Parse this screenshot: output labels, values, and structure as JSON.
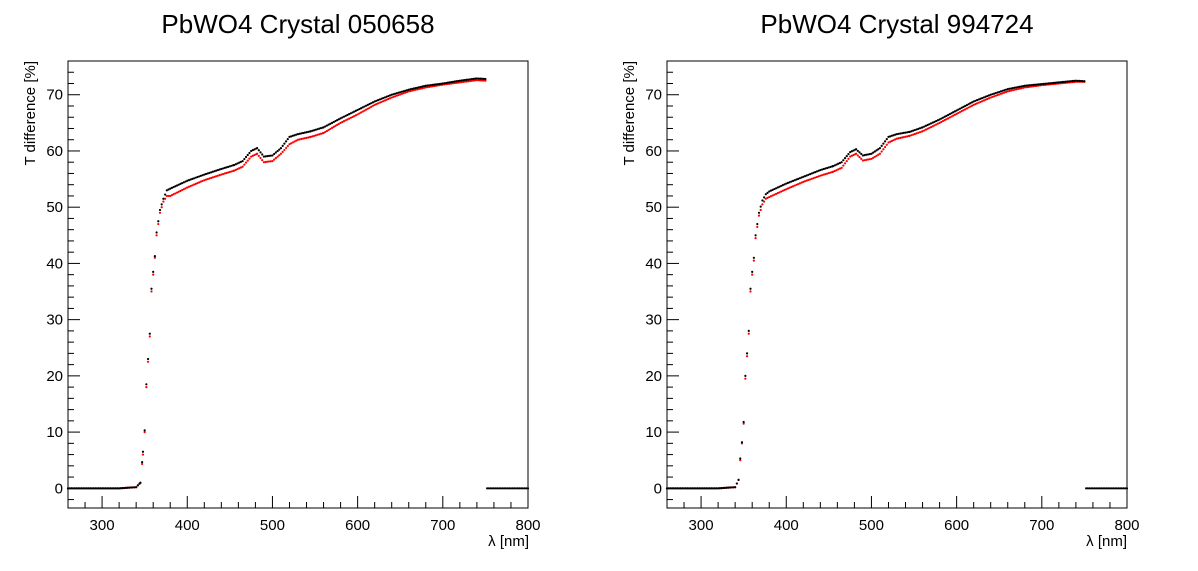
{
  "chart_data": [
    {
      "type": "scatter",
      "title": "PbWO4 Crystal 050658",
      "xlabel": "λ [nm]",
      "ylabel": "T difference [%]",
      "xlim": [
        260,
        800
      ],
      "ylim": [
        -3.5,
        76
      ],
      "xticks": [
        300,
        400,
        500,
        600,
        700,
        800
      ],
      "yticks": [
        0,
        10,
        20,
        30,
        40,
        50,
        60,
        70
      ],
      "grid": false,
      "legend": "none",
      "series": [
        {
          "color": "#ff0000",
          "points": [
            [
              260,
              0
            ],
            [
              320,
              0
            ],
            [
              340,
              0.2
            ],
            [
              345,
              1
            ],
            [
              348,
              6
            ],
            [
              350,
              10
            ],
            [
              352,
              18
            ],
            [
              354,
              22.5
            ],
            [
              356,
              27
            ],
            [
              358,
              35
            ],
            [
              360,
              38
            ],
            [
              362,
              41
            ],
            [
              364,
              45
            ],
            [
              366,
              47
            ],
            [
              368,
              49
            ],
            [
              372,
              51
            ],
            [
              376,
              52
            ],
            [
              380,
              52
            ],
            [
              400,
              53.5
            ],
            [
              420,
              54.8
            ],
            [
              440,
              55.8
            ],
            [
              455,
              56.5
            ],
            [
              465,
              57.2
            ],
            [
              475,
              59
            ],
            [
              482,
              59.5
            ],
            [
              490,
              58
            ],
            [
              500,
              58.2
            ],
            [
              510,
              59.5
            ],
            [
              520,
              61.2
            ],
            [
              530,
              62
            ],
            [
              545,
              62.5
            ],
            [
              560,
              63.2
            ],
            [
              580,
              65
            ],
            [
              600,
              66.5
            ],
            [
              620,
              68.2
            ],
            [
              640,
              69.5
            ],
            [
              660,
              70.6
            ],
            [
              680,
              71.3
            ],
            [
              700,
              71.8
            ],
            [
              720,
              72.2
            ],
            [
              740,
              72.6
            ],
            [
              750,
              72.5
            ]
          ]
        },
        {
          "color": "#000000",
          "points": [
            [
              260,
              0
            ],
            [
              320,
              0
            ],
            [
              340,
              0.2
            ],
            [
              345,
              1
            ],
            [
              348,
              6.5
            ],
            [
              350,
              10.3
            ],
            [
              352,
              18.5
            ],
            [
              354,
              23
            ],
            [
              356,
              27.5
            ],
            [
              358,
              35.5
            ],
            [
              360,
              38.5
            ],
            [
              362,
              41.3
            ],
            [
              364,
              45.5
            ],
            [
              366,
              47.5
            ],
            [
              368,
              49.5
            ],
            [
              372,
              51.5
            ],
            [
              376,
              53
            ],
            [
              380,
              53.3
            ],
            [
              400,
              54.7
            ],
            [
              420,
              55.8
            ],
            [
              440,
              56.8
            ],
            [
              455,
              57.5
            ],
            [
              465,
              58.2
            ],
            [
              475,
              60
            ],
            [
              482,
              60.5
            ],
            [
              490,
              59
            ],
            [
              500,
              59.2
            ],
            [
              510,
              60.5
            ],
            [
              520,
              62.5
            ],
            [
              530,
              63
            ],
            [
              545,
              63.5
            ],
            [
              560,
              64.2
            ],
            [
              580,
              65.8
            ],
            [
              600,
              67.3
            ],
            [
              620,
              68.8
            ],
            [
              640,
              70
            ],
            [
              660,
              70.9
            ],
            [
              680,
              71.6
            ],
            [
              700,
              72
            ],
            [
              720,
              72.5
            ],
            [
              740,
              72.9
            ],
            [
              750,
              72.8
            ],
            [
              752,
              0
            ],
            [
              800,
              0
            ]
          ]
        }
      ]
    },
    {
      "type": "scatter",
      "title": "PbWO4 Crystal 994724",
      "xlabel": "λ [nm]",
      "ylabel": "T difference [%]",
      "xlim": [
        260,
        800
      ],
      "ylim": [
        -3.5,
        76
      ],
      "xticks": [
        300,
        400,
        500,
        600,
        700,
        800
      ],
      "yticks": [
        0,
        10,
        20,
        30,
        40,
        50,
        60,
        70
      ],
      "grid": false,
      "legend": "none",
      "series": [
        {
          "color": "#ff0000",
          "points": [
            [
              260,
              0
            ],
            [
              320,
              0
            ],
            [
              340,
              0.2
            ],
            [
              344,
              1.5
            ],
            [
              346,
              5
            ],
            [
              348,
              8
            ],
            [
              350,
              11.5
            ],
            [
              352,
              19.5
            ],
            [
              354,
              23.5
            ],
            [
              356,
              27.5
            ],
            [
              358,
              35
            ],
            [
              360,
              38
            ],
            [
              362,
              40.5
            ],
            [
              364,
              44.5
            ],
            [
              366,
              46.5
            ],
            [
              368,
              48.5
            ],
            [
              372,
              50.5
            ],
            [
              376,
              51.5
            ],
            [
              380,
              51.8
            ],
            [
              400,
              53.2
            ],
            [
              420,
              54.5
            ],
            [
              440,
              55.6
            ],
            [
              455,
              56.3
            ],
            [
              465,
              57
            ],
            [
              475,
              59
            ],
            [
              482,
              59.5
            ],
            [
              490,
              58.3
            ],
            [
              500,
              58.6
            ],
            [
              510,
              59.5
            ],
            [
              520,
              61.5
            ],
            [
              530,
              62.2
            ],
            [
              545,
              62.7
            ],
            [
              560,
              63.5
            ],
            [
              580,
              65
            ],
            [
              600,
              66.6
            ],
            [
              620,
              68.2
            ],
            [
              640,
              69.5
            ],
            [
              660,
              70.6
            ],
            [
              680,
              71.3
            ],
            [
              700,
              71.7
            ],
            [
              720,
              72
            ],
            [
              740,
              72.3
            ],
            [
              750,
              72.3
            ]
          ]
        },
        {
          "color": "#000000",
          "points": [
            [
              260,
              0
            ],
            [
              320,
              0
            ],
            [
              340,
              0.2
            ],
            [
              344,
              1.5
            ],
            [
              346,
              5.3
            ],
            [
              348,
              8.2
            ],
            [
              350,
              11.8
            ],
            [
              352,
              20
            ],
            [
              354,
              24
            ],
            [
              356,
              28
            ],
            [
              358,
              35.5
            ],
            [
              360,
              38.5
            ],
            [
              362,
              41
            ],
            [
              364,
              45
            ],
            [
              366,
              47
            ],
            [
              368,
              49
            ],
            [
              372,
              51.2
            ],
            [
              376,
              52.3
            ],
            [
              380,
              52.8
            ],
            [
              400,
              54.2
            ],
            [
              420,
              55.4
            ],
            [
              440,
              56.6
            ],
            [
              455,
              57.3
            ],
            [
              465,
              58
            ],
            [
              475,
              59.8
            ],
            [
              482,
              60.3
            ],
            [
              490,
              59.2
            ],
            [
              500,
              59.5
            ],
            [
              510,
              60.5
            ],
            [
              520,
              62.5
            ],
            [
              530,
              63
            ],
            [
              545,
              63.4
            ],
            [
              560,
              64.2
            ],
            [
              580,
              65.6
            ],
            [
              600,
              67.2
            ],
            [
              620,
              68.8
            ],
            [
              640,
              70
            ],
            [
              660,
              71
            ],
            [
              680,
              71.6
            ],
            [
              700,
              71.9
            ],
            [
              720,
              72.2
            ],
            [
              740,
              72.5
            ],
            [
              750,
              72.4
            ],
            [
              752,
              0
            ],
            [
              800,
              0
            ]
          ]
        }
      ]
    }
  ]
}
